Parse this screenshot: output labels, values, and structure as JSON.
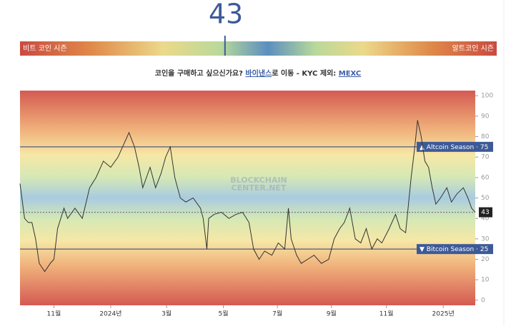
{
  "header": {
    "current_value": 43,
    "left_label": "비트 코인 시즌",
    "right_label": "알트코인 시즌",
    "prompt": "코인을 구매하고 싶으신가요?",
    "link1": "바이낸스",
    "middle": "로 이동 - KYC 제외:",
    "link2": "MEXC"
  },
  "chart_data": {
    "type": "line",
    "watermark": [
      "BLOCKCHAIN",
      "CENTER.NET"
    ],
    "x": [
      0,
      5,
      9,
      13,
      17,
      21,
      27,
      33,
      37,
      41,
      48,
      52,
      60,
      68,
      76,
      83,
      91,
      99,
      107,
      112,
      119,
      125,
      130,
      134,
      142,
      148,
      154,
      159,
      164,
      169,
      175,
      181,
      189,
      197,
      200,
      204,
      206,
      212,
      220,
      228,
      236,
      243,
      250,
      255,
      261,
      267,
      275,
      282,
      289,
      293,
      296,
      302,
      307,
      314,
      321,
      329,
      337,
      343,
      349,
      354,
      360,
      366,
      372,
      378,
      384,
      390,
      395,
      403,
      410,
      415,
      421,
      427,
      431,
      434,
      438,
      442,
      446,
      450,
      454,
      459,
      466,
      471,
      477,
      484,
      489,
      493,
      497
    ],
    "series": [
      {
        "color": "#333333",
        "values": [
          57,
          40,
          38,
          38,
          30,
          18,
          14,
          18,
          20,
          35,
          45,
          40,
          45,
          40,
          55,
          60,
          68,
          65,
          70,
          75,
          82,
          75,
          65,
          55,
          65,
          55,
          62,
          70,
          75,
          60,
          50,
          48,
          50,
          45,
          40,
          25,
          40,
          42,
          43,
          40,
          42,
          43,
          38,
          25,
          20,
          24,
          22,
          28,
          25,
          45,
          30,
          22,
          18,
          20,
          22,
          18,
          20,
          30,
          35,
          38,
          45,
          30,
          28,
          35,
          25,
          30,
          28,
          35,
          42,
          35,
          33,
          60,
          75,
          88,
          80,
          68,
          65,
          55,
          47,
          50,
          55,
          48,
          52,
          55,
          50,
          45,
          43
        ]
      }
    ],
    "xlim": [
      0,
      497
    ],
    "xticks": [
      {
        "value": 37,
        "label": "11월"
      },
      {
        "value": 99,
        "label": "2024년"
      },
      {
        "value": 160,
        "label": "3월"
      },
      {
        "value": 222,
        "label": "5월"
      },
      {
        "value": 281,
        "label": "7월"
      },
      {
        "value": 340,
        "label": "9월"
      },
      {
        "value": 400,
        "label": "11월"
      },
      {
        "value": 462,
        "label": "2025년"
      }
    ],
    "ylim": [
      -2.5,
      102.5
    ],
    "yticks": [
      0,
      10,
      20,
      30,
      40,
      50,
      60,
      70,
      80,
      90,
      100
    ],
    "reference_lines": [
      {
        "label": "▲ Altcoin Season ·",
        "value": 75
      },
      {
        "label": "▼ Bitcoin Season ·",
        "value": 25
      }
    ]
  }
}
